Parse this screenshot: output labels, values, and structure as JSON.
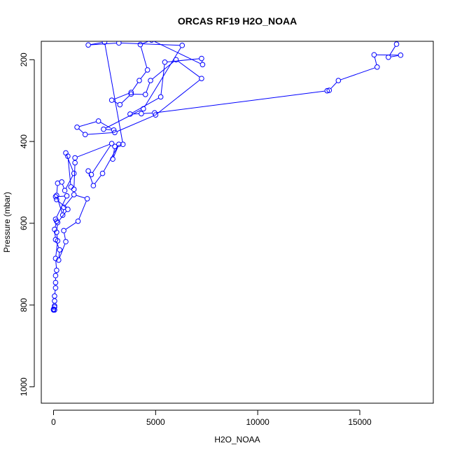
{
  "chart_data": {
    "type": "line",
    "title": "ORCAS RF19 H2O_NOAA",
    "xlabel": "H2O_NOAA",
    "ylabel": "Pressure (mbar)",
    "xlim": [
      -600,
      18600
    ],
    "ylim": [
      1040,
      155
    ],
    "y_inverted": true,
    "x_ticks": [
      0,
      5000,
      10000,
      15000
    ],
    "x_tick_labels": [
      "0",
      "5000",
      "10000",
      "15000"
    ],
    "y_ticks": [
      200,
      400,
      600,
      800,
      1000
    ],
    "y_tick_labels": [
      "200",
      "400",
      "600",
      "800",
      "1000"
    ],
    "grid": false,
    "line_color": "#0000ff",
    "marker": "open-circle",
    "series": [
      {
        "values": [
          [
            16800,
            162
          ],
          [
            16400,
            194
          ],
          [
            17000,
            189
          ],
          [
            15700,
            188
          ],
          [
            15850,
            218
          ],
          [
            13950,
            251
          ],
          [
            13500,
            275
          ],
          [
            13400,
            276
          ],
          [
            4950,
            330
          ],
          [
            4300,
            332
          ],
          [
            3750,
            333
          ],
          [
            5250,
            291
          ],
          [
            5450,
            206
          ],
          [
            7250,
            197
          ],
          [
            7300,
            212
          ],
          [
            4800,
            152
          ],
          [
            4250,
            163
          ],
          [
            4600,
            225
          ],
          [
            4200,
            251
          ],
          [
            3800,
            280
          ],
          [
            2850,
            299
          ],
          [
            3250,
            310
          ],
          [
            3800,
            284
          ],
          [
            4500,
            285
          ],
          [
            4750,
            251
          ],
          [
            6000,
            200
          ],
          [
            7250,
            246
          ],
          [
            5000,
            335
          ],
          [
            3000,
            378
          ],
          [
            1550,
            383
          ],
          [
            1150,
            365
          ],
          [
            2200,
            350
          ],
          [
            2950,
            372
          ],
          [
            2450,
            370
          ],
          [
            4400,
            320
          ],
          [
            6300,
            165
          ],
          [
            3200,
            159
          ],
          [
            1700,
            164
          ],
          [
            2500,
            157
          ],
          [
            3400,
            407
          ],
          [
            3000,
            412
          ],
          [
            2900,
            443
          ],
          [
            3200,
            407
          ],
          [
            2400,
            478
          ],
          [
            1950,
            508
          ],
          [
            1700,
            472
          ],
          [
            1850,
            481
          ],
          [
            2850,
            405
          ],
          [
            1050,
            440
          ],
          [
            1050,
            452
          ],
          [
            1000,
            517
          ],
          [
            850,
            511
          ],
          [
            700,
            436
          ],
          [
            600,
            428
          ],
          [
            1000,
            478
          ],
          [
            550,
            520
          ],
          [
            400,
            499
          ],
          [
            200,
            502
          ],
          [
            150,
            532
          ],
          [
            450,
            580
          ],
          [
            500,
            561
          ],
          [
            1000,
            530
          ],
          [
            1650,
            540
          ],
          [
            1200,
            595
          ],
          [
            500,
            618
          ],
          [
            600,
            645
          ],
          [
            250,
            690
          ],
          [
            300,
            665
          ],
          [
            100,
            640
          ],
          [
            50,
            615
          ],
          [
            150,
            595
          ],
          [
            100,
            590
          ],
          [
            650,
            533
          ],
          [
            100,
            535
          ],
          [
            150,
            542
          ],
          [
            700,
            566
          ],
          [
            200,
            598
          ],
          [
            150,
            622
          ],
          [
            200,
            643
          ],
          [
            100,
            686
          ],
          [
            150,
            715
          ],
          [
            100,
            728
          ],
          [
            100,
            745
          ],
          [
            100,
            758
          ],
          [
            50,
            778
          ],
          [
            50,
            790
          ],
          [
            50,
            802
          ],
          [
            0,
            810
          ],
          [
            50,
            805
          ],
          [
            0,
            812
          ],
          [
            50,
            812
          ]
        ]
      }
    ]
  }
}
